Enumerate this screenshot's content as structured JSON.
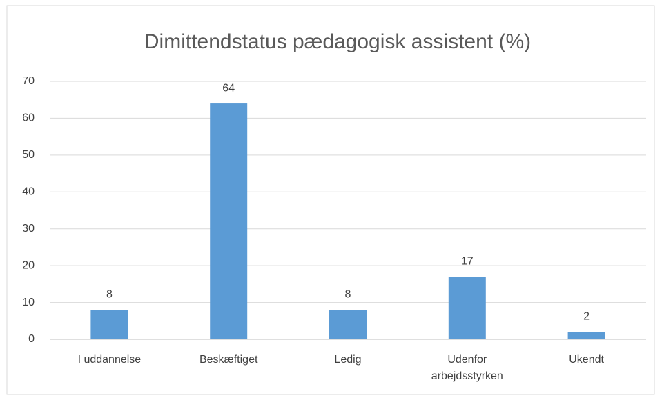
{
  "chart_data": {
    "type": "bar",
    "title": "Dimittendstatus pædagogisk assistent (%)",
    "categories": [
      "I uddannelse",
      "Beskæftiget",
      "Ledig",
      "Udenfor arbejdsstyrken",
      "Ukendt"
    ],
    "values": [
      8,
      64,
      8,
      17,
      2
    ],
    "color": "#5b9bd5",
    "ylim": [
      0,
      70
    ],
    "yticks": [
      0,
      10,
      20,
      30,
      40,
      50,
      60,
      70
    ],
    "grid": true
  }
}
